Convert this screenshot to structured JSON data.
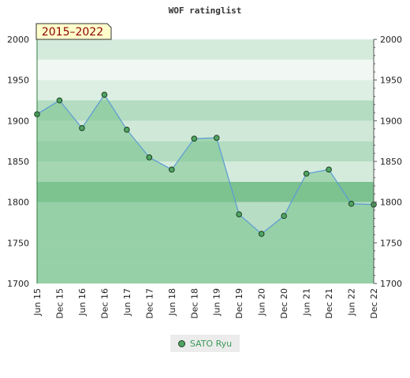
{
  "chart_data": {
    "type": "area",
    "title": "WOF ratinglist",
    "range_label": "2015–2022",
    "x": [
      "Jun 15",
      "Dec 15",
      "Jun 16",
      "Dec 16",
      "Jun 17",
      "Dec 17",
      "Jun 18",
      "Dec 18",
      "Jun 19",
      "Dec 19",
      "Jun 20",
      "Dec 20",
      "Jun 21",
      "Dec 21",
      "Jun 22",
      "Dec 22"
    ],
    "series": [
      {
        "name": "SATO Ryu",
        "values": [
          1908,
          1925,
          1891,
          1932,
          1889,
          1855,
          1840,
          1878,
          1879,
          1785,
          1761,
          1783,
          1835,
          1840,
          1798,
          1797
        ]
      }
    ],
    "ylim": [
      1700,
      2000
    ],
    "yticks": [
      1700,
      1750,
      1800,
      1850,
      1900,
      1950,
      2000
    ],
    "xlabel": "",
    "ylabel": "",
    "grid": true,
    "legend_position": "bottom",
    "colors": {
      "line": "#5b9bd5",
      "marker": "#4fa463",
      "fill": "#7bc48f"
    }
  },
  "legend": {
    "label": "SATO Ryu"
  }
}
